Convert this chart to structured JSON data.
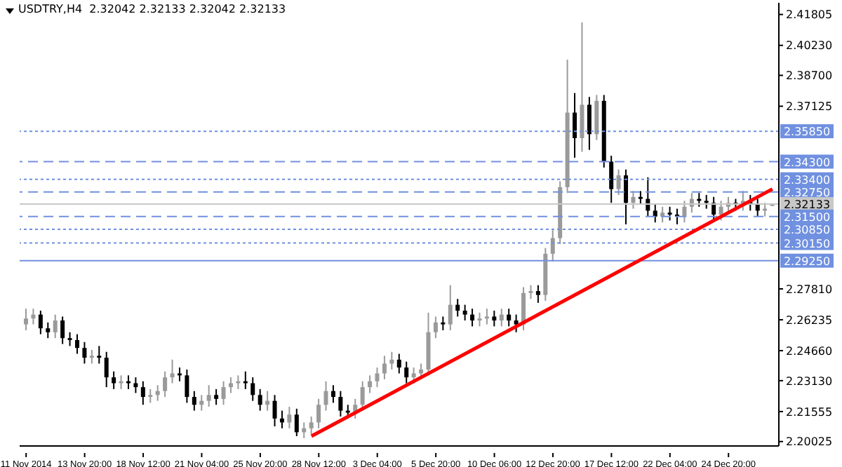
{
  "chart_data": {
    "type": "candlestick",
    "title": "USDTRY,H4  2.32042 2.32133 2.32042 2.32133",
    "categories": [
      "11 Nov 2014",
      null,
      null,
      null,
      null,
      null,
      null,
      null,
      "13 Nov 20:00",
      null,
      null,
      null,
      null,
      null,
      null,
      null,
      "18 Nov 12:00",
      null,
      null,
      null,
      null,
      null,
      null,
      null,
      "21 Nov 04:00",
      null,
      null,
      null,
      null,
      null,
      null,
      null,
      "25 Nov 20:00",
      null,
      null,
      null,
      null,
      null,
      null,
      null,
      "28 Nov 12:00",
      null,
      null,
      null,
      null,
      null,
      null,
      null,
      "3 Dec 04:00",
      null,
      null,
      null,
      null,
      null,
      null,
      null,
      "5 Dec 20:00",
      null,
      null,
      null,
      null,
      null,
      null,
      null,
      "10 Dec 06:00",
      null,
      null,
      null,
      null,
      null,
      null,
      null,
      "12 Dec 20:00",
      null,
      null,
      null,
      null,
      null,
      null,
      null,
      "17 Dec 12:00",
      null,
      null,
      null,
      null,
      null,
      null,
      null,
      "22 Dec 04:00",
      null,
      null,
      null,
      null,
      null,
      null,
      null,
      "24 Dec 20:00",
      null,
      null,
      null,
      null,
      null,
      null
    ],
    "ohlc": [
      [
        2.26,
        2.268,
        2.257,
        2.263
      ],
      [
        2.263,
        2.268,
        2.26,
        2.265
      ],
      [
        2.265,
        2.267,
        2.255,
        2.258
      ],
      [
        2.258,
        2.261,
        2.253,
        2.256
      ],
      [
        2.256,
        2.265,
        2.253,
        2.262
      ],
      [
        2.262,
        2.264,
        2.25,
        2.253
      ],
      [
        2.253,
        2.256,
        2.249,
        2.252
      ],
      [
        2.252,
        2.255,
        2.245,
        2.248
      ],
      [
        2.248,
        2.251,
        2.24,
        2.243
      ],
      [
        2.243,
        2.247,
        2.24,
        2.244
      ],
      [
        2.244,
        2.249,
        2.24,
        2.243
      ],
      [
        2.243,
        2.246,
        2.228,
        2.233
      ],
      [
        2.233,
        2.236,
        2.227,
        2.23
      ],
      [
        2.23,
        2.234,
        2.227,
        2.231
      ],
      [
        2.231,
        2.234,
        2.227,
        2.23
      ],
      [
        2.23,
        2.233,
        2.225,
        2.228
      ],
      [
        2.228,
        2.231,
        2.219,
        2.223
      ],
      [
        2.223,
        2.227,
        2.22,
        2.224
      ],
      [
        2.224,
        2.229,
        2.221,
        2.226
      ],
      [
        2.226,
        2.236,
        2.223,
        2.233
      ],
      [
        2.233,
        2.242,
        2.23,
        2.235
      ],
      [
        2.235,
        2.238,
        2.231,
        2.234
      ],
      [
        2.234,
        2.237,
        2.22,
        2.223
      ],
      [
        2.223,
        2.226,
        2.216,
        2.219
      ],
      [
        2.219,
        2.224,
        2.216,
        2.221
      ],
      [
        2.221,
        2.229,
        2.218,
        2.224
      ],
      [
        2.224,
        2.227,
        2.219,
        2.222
      ],
      [
        2.222,
        2.231,
        2.219,
        2.228
      ],
      [
        2.228,
        2.233,
        2.225,
        2.23
      ],
      [
        2.23,
        2.234,
        2.227,
        2.231
      ],
      [
        2.231,
        2.236,
        2.227,
        2.23
      ],
      [
        2.23,
        2.233,
        2.221,
        2.224
      ],
      [
        2.224,
        2.227,
        2.216,
        2.219
      ],
      [
        2.219,
        2.226,
        2.216,
        2.221
      ],
      [
        2.221,
        2.224,
        2.208,
        2.212
      ],
      [
        2.212,
        2.216,
        2.207,
        2.21
      ],
      [
        2.21,
        2.218,
        2.207,
        2.214
      ],
      [
        2.214,
        2.217,
        2.203,
        2.205
      ],
      [
        2.205,
        2.21,
        2.202,
        2.207
      ],
      [
        2.207,
        2.213,
        2.204,
        2.21
      ],
      [
        2.21,
        2.222,
        2.207,
        2.219
      ],
      [
        2.219,
        2.231,
        2.216,
        2.226
      ],
      [
        2.226,
        2.229,
        2.22,
        2.223
      ],
      [
        2.223,
        2.226,
        2.213,
        2.216
      ],
      [
        2.216,
        2.219,
        2.212,
        2.215
      ],
      [
        2.215,
        2.222,
        2.212,
        2.219
      ],
      [
        2.219,
        2.231,
        2.216,
        2.228
      ],
      [
        2.228,
        2.234,
        2.225,
        2.231
      ],
      [
        2.231,
        2.238,
        2.228,
        2.235
      ],
      [
        2.235,
        2.244,
        2.232,
        2.24
      ],
      [
        2.24,
        2.246,
        2.237,
        2.242
      ],
      [
        2.242,
        2.245,
        2.235,
        2.238
      ],
      [
        2.238,
        2.241,
        2.23,
        2.233
      ],
      [
        2.233,
        2.238,
        2.23,
        2.235
      ],
      [
        2.235,
        2.24,
        2.232,
        2.237
      ],
      [
        2.237,
        2.266,
        2.234,
        2.256
      ],
      [
        2.256,
        2.264,
        2.253,
        2.261
      ],
      [
        2.261,
        2.264,
        2.257,
        2.26
      ],
      [
        2.26,
        2.28,
        2.257,
        2.27
      ],
      [
        2.27,
        2.273,
        2.264,
        2.267
      ],
      [
        2.267,
        2.27,
        2.262,
        2.265
      ],
      [
        2.265,
        2.268,
        2.259,
        2.262
      ],
      [
        2.262,
        2.266,
        2.259,
        2.263
      ],
      [
        2.263,
        2.268,
        2.26,
        2.264
      ],
      [
        2.264,
        2.267,
        2.259,
        2.262
      ],
      [
        2.262,
        2.268,
        2.259,
        2.265
      ],
      [
        2.265,
        2.268,
        2.259,
        2.262
      ],
      [
        2.262,
        2.265,
        2.256,
        2.26
      ],
      [
        2.26,
        2.279,
        2.257,
        2.276
      ],
      [
        2.276,
        2.28,
        2.273,
        2.277
      ],
      [
        2.277,
        2.28,
        2.271,
        2.275
      ],
      [
        2.275,
        2.299,
        2.272,
        2.296
      ],
      [
        2.296,
        2.308,
        2.292,
        2.304
      ],
      [
        2.304,
        2.333,
        2.301,
        2.33
      ],
      [
        2.33,
        2.395,
        2.327,
        2.368
      ],
      [
        2.368,
        2.378,
        2.345,
        2.355
      ],
      [
        2.355,
        2.414,
        2.348,
        2.372
      ],
      [
        2.372,
        2.376,
        2.349,
        2.357
      ],
      [
        2.357,
        2.377,
        2.354,
        2.374
      ],
      [
        2.374,
        2.377,
        2.34,
        2.343
      ],
      [
        2.343,
        2.346,
        2.322,
        2.329
      ],
      [
        2.329,
        2.339,
        2.326,
        2.336
      ],
      [
        2.336,
        2.339,
        2.311,
        2.322
      ],
      [
        2.322,
        2.328,
        2.319,
        2.325
      ],
      [
        2.325,
        2.328,
        2.321,
        2.324
      ],
      [
        2.324,
        2.335,
        2.315,
        2.318
      ],
      [
        2.318,
        2.321,
        2.312,
        2.315
      ],
      [
        2.315,
        2.32,
        2.312,
        2.317
      ],
      [
        2.317,
        2.32,
        2.313,
        2.316
      ],
      [
        2.316,
        2.319,
        2.311,
        2.315
      ],
      [
        2.315,
        2.323,
        2.312,
        2.32
      ],
      [
        2.32,
        2.327,
        2.317,
        2.324
      ],
      [
        2.324,
        2.327,
        2.32,
        2.323
      ],
      [
        2.323,
        2.326,
        2.319,
        2.322
      ],
      [
        2.322,
        2.325,
        2.313,
        2.316
      ],
      [
        2.316,
        2.323,
        2.313,
        2.32
      ],
      [
        2.32,
        2.325,
        2.317,
        2.322
      ],
      [
        2.322,
        2.324,
        2.318,
        2.321
      ],
      [
        2.321,
        2.328,
        2.318,
        2.323
      ],
      [
        2.323,
        2.326,
        2.318,
        2.321
      ],
      [
        2.321,
        2.324,
        2.315,
        2.318
      ],
      [
        2.318,
        2.322,
        2.315,
        2.319
      ],
      [
        2.32042,
        2.32133,
        2.32042,
        2.32133
      ]
    ],
    "series": [
      {
        "type": "line",
        "color": "#ff0000",
        "values": [
          null,
          null,
          null,
          null,
          null,
          null,
          null,
          null,
          null,
          null,
          null,
          null,
          null,
          null,
          null,
          null,
          null,
          null,
          null,
          null,
          null,
          null,
          null,
          null,
          null,
          null,
          null,
          null,
          null,
          null,
          null,
          null,
          null,
          null,
          null,
          null,
          null,
          null,
          null,
          2.203,
          null,
          null,
          null,
          null,
          null,
          null,
          null,
          null,
          null,
          null,
          null,
          null,
          null,
          null,
          null,
          null,
          null,
          null,
          null,
          null,
          null,
          null,
          null,
          null,
          null,
          null,
          null,
          null,
          null,
          null,
          null,
          null,
          null,
          null,
          null,
          null,
          null,
          null,
          null,
          null,
          null,
          null,
          null,
          null,
          null,
          null,
          null,
          null,
          null,
          null,
          null,
          null,
          null,
          null,
          null,
          null,
          null,
          null,
          null,
          null,
          null,
          null,
          2.329
        ]
      }
    ],
    "ylim": [
      2.198,
      2.424
    ],
    "yticks": [
      {
        "value": 2.41805,
        "label": "2.41805"
      },
      {
        "value": 2.4023,
        "label": "2.40230"
      },
      {
        "value": 2.387,
        "label": "2.38700"
      },
      {
        "value": 2.37125,
        "label": "2.37125"
      },
      {
        "value": 2.2781,
        "label": "2.27810"
      },
      {
        "value": 2.26235,
        "label": "2.26235"
      },
      {
        "value": 2.2466,
        "label": "2.24660"
      },
      {
        "value": 2.2313,
        "label": "2.23130"
      },
      {
        "value": 2.21555,
        "label": "2.21555"
      },
      {
        "value": 2.20025,
        "label": "2.20025"
      }
    ],
    "ref_lines": [
      {
        "axis": "y",
        "value": 2.3585,
        "label": "2.35850",
        "color": "#7090e0",
        "line_style": "dotted"
      },
      {
        "axis": "y",
        "value": 2.343,
        "label": "2.34300",
        "color": "#7090e0",
        "line_style": "dashed"
      },
      {
        "axis": "y",
        "value": 2.334,
        "label": "2.33400",
        "color": "#7090e0",
        "line_style": "dotted"
      },
      {
        "axis": "y",
        "value": 2.3275,
        "label": "2.32750",
        "color": "#7090e0",
        "line_style": "dashed"
      },
      {
        "axis": "y",
        "value": 2.32133,
        "label": "2.32133",
        "color": "#c8c8c8",
        "line_style": "solid"
      },
      {
        "axis": "y",
        "value": 2.315,
        "label": "2.31500",
        "color": "#7090e0",
        "line_style": "dashed"
      },
      {
        "axis": "y",
        "value": 2.3085,
        "label": "2.30850",
        "color": "#7090e0",
        "line_style": "dotted"
      },
      {
        "axis": "y",
        "value": 2.3015,
        "label": "2.30150",
        "color": "#7090e0",
        "line_style": "dotted"
      },
      {
        "axis": "y",
        "value": 2.2925,
        "label": "2.29250",
        "color": "#7090e0",
        "line_style": "solid"
      }
    ],
    "grid": false,
    "legend": false
  }
}
